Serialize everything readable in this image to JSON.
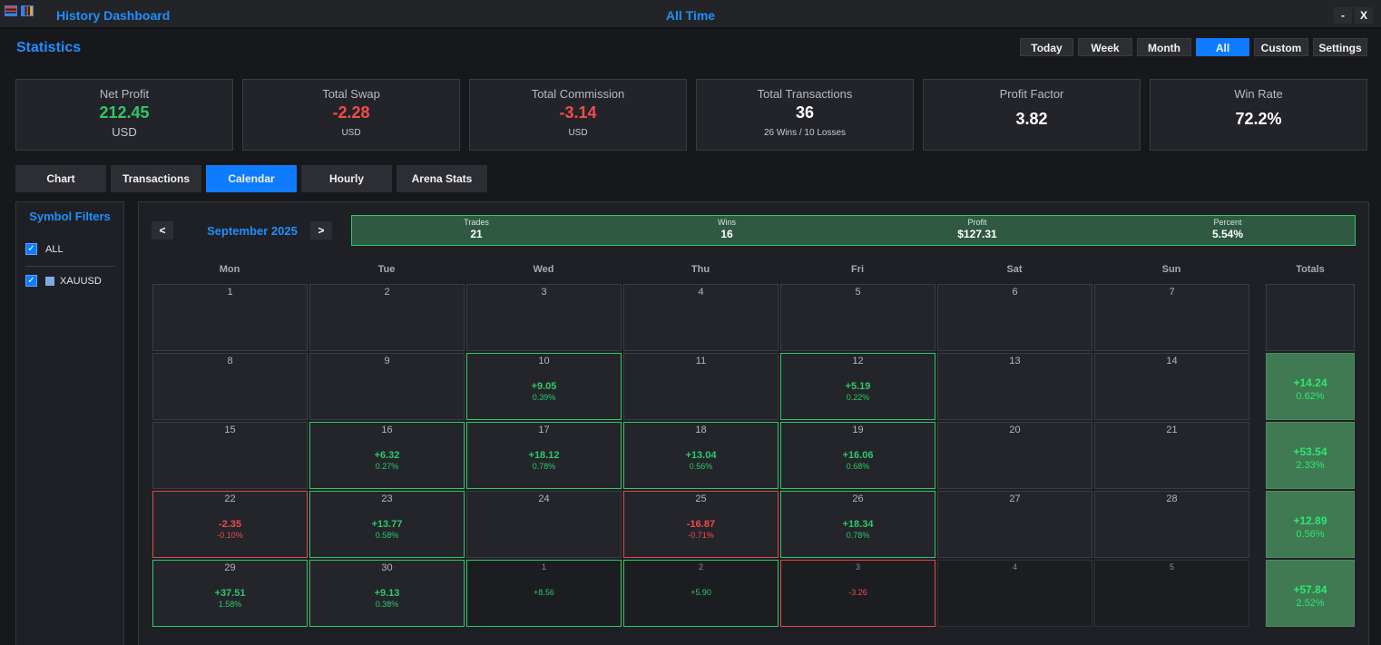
{
  "titlebar": {
    "app_title": "History Dashboard",
    "center_title": "All Time",
    "minimize": "-",
    "close": "X"
  },
  "header": {
    "title": "Statistics",
    "periods": [
      "Today",
      "Week",
      "Month",
      "All",
      "Custom",
      "Settings"
    ],
    "active_period": "All"
  },
  "cards": [
    {
      "label": "Net Profit",
      "value": "212.45",
      "sub": "USD",
      "tone": "positive"
    },
    {
      "label": "Total Swap",
      "value": "-2.28",
      "sub": "USD",
      "tone": "negative"
    },
    {
      "label": "Total Commission",
      "value": "-3.14",
      "sub": "USD",
      "tone": "negative"
    },
    {
      "label": "Total Transactions",
      "value": "36",
      "sub": "26 Wins / 10 Losses",
      "tone": "neutral"
    },
    {
      "label": "Profit Factor",
      "value": "3.82",
      "sub": "",
      "tone": "neutral"
    },
    {
      "label": "Win Rate",
      "value": "72.2%",
      "sub": "",
      "tone": "neutral"
    }
  ],
  "tabs": [
    "Chart",
    "Transactions",
    "Calendar",
    "Hourly",
    "Arena Stats"
  ],
  "active_tab": "Calendar",
  "sidebar": {
    "title": "Symbol Filters",
    "filters": [
      {
        "label": "ALL",
        "checked": true
      },
      {
        "label": "XAUUSD",
        "checked": true,
        "color": "#7fa8e8"
      }
    ]
  },
  "calendar": {
    "prev": "<",
    "next": ">",
    "month": "September 2025",
    "summary": [
      {
        "label": "Trades",
        "value": "21"
      },
      {
        "label": "Wins",
        "value": "16"
      },
      {
        "label": "Profit",
        "value": "$127.31"
      },
      {
        "label": "Percent",
        "value": "5.54%"
      }
    ],
    "weekdays": [
      "Mon",
      "Tue",
      "Wed",
      "Thu",
      "Fri",
      "Sat",
      "Sun"
    ],
    "totals_label": "Totals",
    "weeks": [
      {
        "days": [
          {
            "day": "1"
          },
          {
            "day": "2"
          },
          {
            "day": "3"
          },
          {
            "day": "4"
          },
          {
            "day": "5"
          },
          {
            "day": "6"
          },
          {
            "day": "7"
          }
        ],
        "total": null
      },
      {
        "days": [
          {
            "day": "8"
          },
          {
            "day": "9"
          },
          {
            "day": "10",
            "value": "+9.05",
            "pct": "0.39%",
            "tone": "pos"
          },
          {
            "day": "11"
          },
          {
            "day": "12",
            "value": "+5.19",
            "pct": "0.22%",
            "tone": "pos"
          },
          {
            "day": "13"
          },
          {
            "day": "14"
          }
        ],
        "total": {
          "value": "+14.24",
          "pct": "0.62%"
        }
      },
      {
        "days": [
          {
            "day": "15"
          },
          {
            "day": "16",
            "value": "+6.32",
            "pct": "0.27%",
            "tone": "pos"
          },
          {
            "day": "17",
            "value": "+18.12",
            "pct": "0.78%",
            "tone": "pos"
          },
          {
            "day": "18",
            "value": "+13.04",
            "pct": "0.56%",
            "tone": "pos"
          },
          {
            "day": "19",
            "value": "+16.06",
            "pct": "0.68%",
            "tone": "pos"
          },
          {
            "day": "20"
          },
          {
            "day": "21"
          }
        ],
        "total": {
          "value": "+53.54",
          "pct": "2.33%"
        }
      },
      {
        "days": [
          {
            "day": "22",
            "value": "-2.35",
            "pct": "-0.10%",
            "tone": "neg"
          },
          {
            "day": "23",
            "value": "+13.77",
            "pct": "0.58%",
            "tone": "pos"
          },
          {
            "day": "24"
          },
          {
            "day": "25",
            "value": "-16.87",
            "pct": "-0.71%",
            "tone": "neg"
          },
          {
            "day": "26",
            "value": "+18.34",
            "pct": "0.78%",
            "tone": "pos"
          },
          {
            "day": "27"
          },
          {
            "day": "28"
          }
        ],
        "total": {
          "value": "+12.89",
          "pct": "0.56%"
        }
      },
      {
        "days": [
          {
            "day": "29",
            "value": "+37.51",
            "pct": "1.58%",
            "tone": "pos"
          },
          {
            "day": "30",
            "value": "+9.13",
            "pct": "0.38%",
            "tone": "pos"
          },
          {
            "day": "1",
            "value": "+8.56",
            "other": true,
            "tone": "pos"
          },
          {
            "day": "2",
            "value": "+5.90",
            "other": true,
            "tone": "pos"
          },
          {
            "day": "3",
            "value": "-3.26",
            "other": true,
            "tone": "neg"
          },
          {
            "day": "4",
            "other": true
          },
          {
            "day": "5",
            "other": true
          }
        ],
        "total": {
          "value": "+57.84",
          "pct": "2.52%"
        }
      }
    ]
  },
  "colors": {
    "accent": "#0f7bff",
    "positive": "#2ec866",
    "negative": "#f24b4b",
    "summary_bg": "#2f5a41",
    "total_bg": "#3f7a52"
  }
}
